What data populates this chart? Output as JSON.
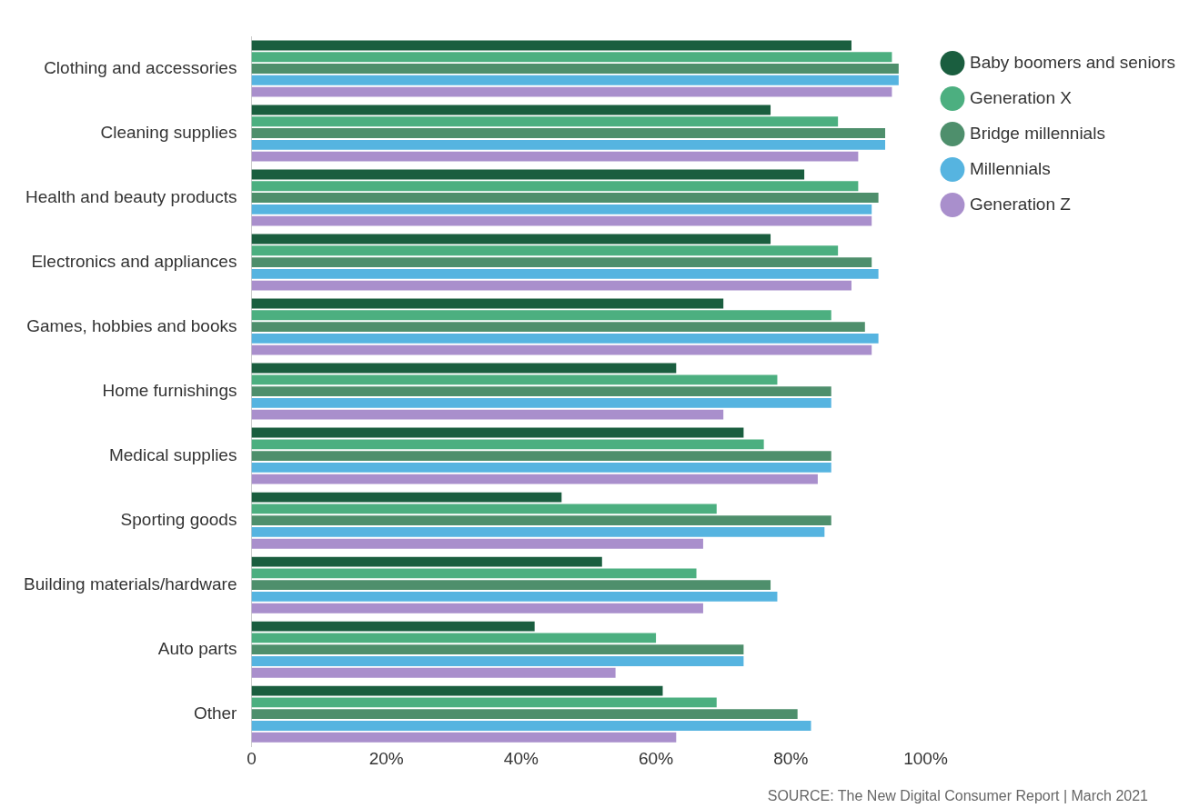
{
  "chart_data": {
    "type": "bar",
    "orientation": "horizontal",
    "categories": [
      "Clothing and accessories",
      "Cleaning supplies",
      "Health and beauty products",
      "Electronics and appliances",
      "Games, hobbies and books",
      "Home furnishings",
      "Medical supplies",
      "Sporting goods",
      "Building materials/hardware",
      "Auto parts",
      "Other"
    ],
    "series": [
      {
        "name": "Baby boomers and seniors",
        "color": "#1a5e3f",
        "values": [
          89,
          77,
          82,
          77,
          70,
          63,
          73,
          46,
          52,
          42,
          61
        ]
      },
      {
        "name": "Generation X",
        "color": "#4caf80",
        "values": [
          95,
          87,
          90,
          87,
          86,
          78,
          76,
          69,
          66,
          60,
          69
        ]
      },
      {
        "name": "Bridge millennials",
        "color": "#4e8f6c",
        "values": [
          96,
          94,
          93,
          92,
          91,
          86,
          86,
          86,
          77,
          73,
          81
        ]
      },
      {
        "name": "Millennials",
        "color": "#56b4e0",
        "values": [
          96,
          94,
          92,
          93,
          93,
          86,
          86,
          85,
          78,
          73,
          83
        ]
      },
      {
        "name": "Generation Z",
        "color": "#a98fcc",
        "values": [
          95,
          90,
          92,
          89,
          92,
          70,
          84,
          67,
          67,
          54,
          63
        ]
      }
    ],
    "xlim": [
      0,
      100
    ],
    "xticks": [
      0,
      {
        "value": 20,
        "label": "20%"
      },
      {
        "value": 40,
        "label": "40%"
      },
      {
        "value": 60,
        "label": "60%"
      },
      {
        "value": 80,
        "label": "80%"
      },
      {
        "value": 100,
        "label": "100%"
      }
    ],
    "grid": false,
    "legend": "top right",
    "annotations": [
      "SOURCE: The New Digital Consumer Report | March 2021"
    ]
  }
}
